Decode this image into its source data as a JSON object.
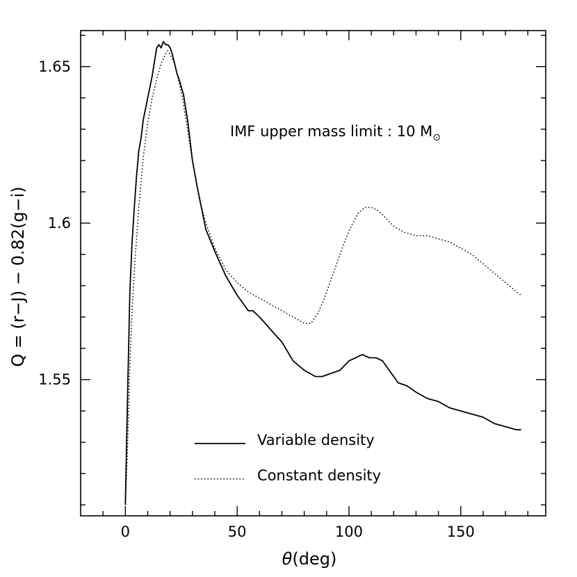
{
  "chart_data": {
    "type": "line",
    "title": "",
    "xlabel_symbol": "θ",
    "xlabel_unit": "(deg)",
    "ylabel": "Q = (r−J) − 0.82(g−i)",
    "xlim": [
      -20,
      188
    ],
    "ylim": [
      1.5065,
      1.6615
    ],
    "x_ticks": [
      0,
      50,
      100,
      150
    ],
    "y_ticks": [
      1.55,
      1.6,
      1.65
    ],
    "annotation": {
      "text": "IMF upper mass limit : 10 M",
      "subscript": "⊙"
    },
    "legend": {
      "position": "bottom-left",
      "entries": [
        "Variable density",
        "Constant density"
      ]
    },
    "series": [
      {
        "name": "Variable density",
        "style": "solid",
        "x": [
          0,
          1,
          2,
          3,
          4,
          5,
          6,
          7,
          8,
          10,
          12,
          14,
          15,
          16,
          17,
          18,
          19,
          20,
          21,
          22,
          23,
          24,
          26,
          28,
          30,
          32,
          34,
          36,
          40,
          45,
          50,
          55,
          57,
          60,
          65,
          70,
          75,
          80,
          85,
          88,
          92,
          96,
          100,
          103,
          106,
          109,
          112,
          115,
          118,
          122,
          126,
          130,
          135,
          140,
          145,
          150,
          155,
          160,
          165,
          170,
          175,
          177
        ],
        "y": [
          1.51,
          1.545,
          1.578,
          1.594,
          1.605,
          1.615,
          1.623,
          1.627,
          1.633,
          1.64,
          1.647,
          1.656,
          1.657,
          1.656,
          1.658,
          1.657,
          1.657,
          1.656,
          1.654,
          1.651,
          1.648,
          1.646,
          1.641,
          1.632,
          1.62,
          1.612,
          1.605,
          1.598,
          1.591,
          1.583,
          1.577,
          1.572,
          1.572,
          1.57,
          1.566,
          1.562,
          1.556,
          1.553,
          1.551,
          1.551,
          1.552,
          1.553,
          1.556,
          1.557,
          1.558,
          1.557,
          1.557,
          1.556,
          1.553,
          1.549,
          1.548,
          1.546,
          1.544,
          1.543,
          1.541,
          1.54,
          1.539,
          1.538,
          1.536,
          1.535,
          1.534,
          1.534
        ]
      },
      {
        "name": "Constant density",
        "style": "dotted",
        "x": [
          0,
          1,
          2,
          3,
          4,
          5,
          6,
          8,
          10,
          12,
          14,
          16,
          18,
          19,
          20,
          22,
          24,
          26,
          28,
          30,
          33,
          36,
          40,
          45,
          50,
          55,
          60,
          65,
          70,
          75,
          80,
          83,
          86,
          89,
          92,
          95,
          98,
          101,
          104,
          107,
          110,
          113,
          116,
          120,
          125,
          130,
          135,
          140,
          145,
          150,
          155,
          160,
          165,
          170,
          175,
          177
        ],
        "y": [
          1.51,
          1.528,
          1.555,
          1.572,
          1.585,
          1.595,
          1.605,
          1.621,
          1.632,
          1.64,
          1.646,
          1.651,
          1.654,
          1.655,
          1.654,
          1.651,
          1.645,
          1.638,
          1.629,
          1.62,
          1.608,
          1.6,
          1.592,
          1.585,
          1.581,
          1.578,
          1.576,
          1.574,
          1.572,
          1.57,
          1.568,
          1.568,
          1.571,
          1.576,
          1.582,
          1.588,
          1.594,
          1.599,
          1.603,
          1.605,
          1.605,
          1.604,
          1.602,
          1.599,
          1.597,
          1.596,
          1.596,
          1.595,
          1.594,
          1.592,
          1.59,
          1.587,
          1.584,
          1.581,
          1.578,
          1.577
        ]
      }
    ]
  }
}
